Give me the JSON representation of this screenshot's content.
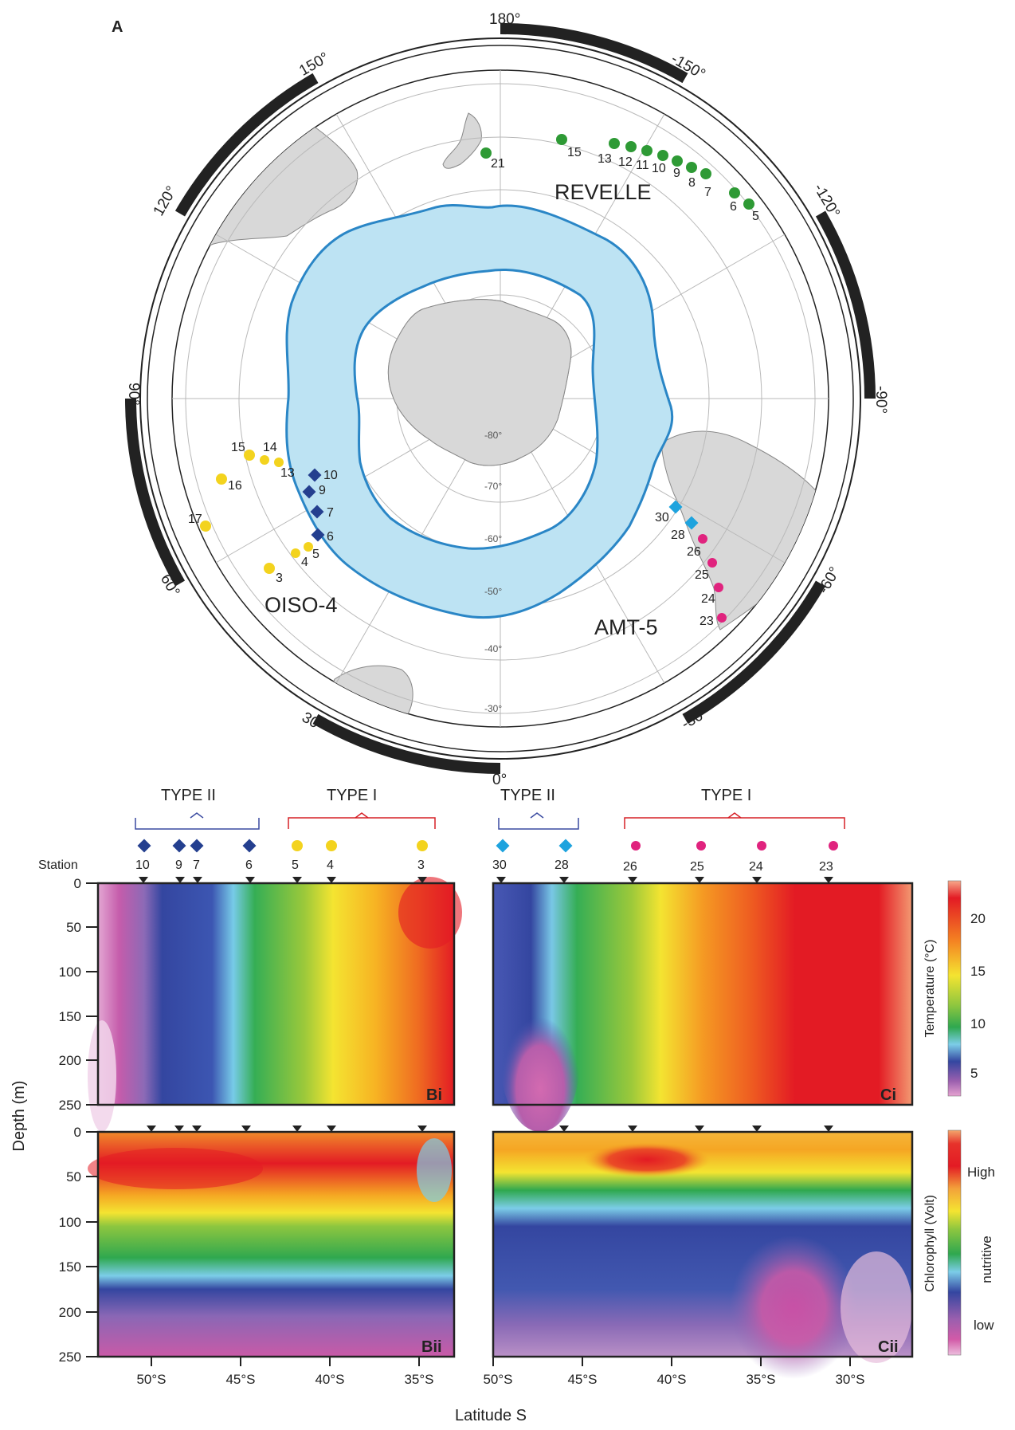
{
  "panel_a": {
    "label": "A",
    "cruise_labels": {
      "revelle": "REVELLE",
      "oiso": "OISO-4",
      "amt": "AMT-5"
    },
    "longitude_labels": [
      "180°",
      "-150°",
      "-120°",
      "-90°",
      "-60°",
      "-30°",
      "0°",
      "30°",
      "60°",
      "90°",
      "120°",
      "150°"
    ],
    "latitude_labels": [
      "-30°",
      "-40°",
      "-50°",
      "-60°",
      "-70°",
      "-80°"
    ],
    "revelle_stations": [
      "21",
      "15",
      "13",
      "12",
      "11",
      "10",
      "9",
      "8",
      "7",
      "6",
      "5"
    ],
    "oiso_type1_stations": [
      "15",
      "14",
      "13",
      "16",
      "17",
      "5",
      "4",
      "3"
    ],
    "oiso_type2_stations": [
      "10",
      "9",
      "7",
      "6"
    ],
    "amt_type2_stations": [
      "30",
      "28"
    ],
    "amt_type1_stations": [
      "26",
      "25",
      "24",
      "23"
    ],
    "colors": {
      "revelle": "#2e9a35",
      "oiso_type1": "#f3d31e",
      "oiso_type2": "#243f8f",
      "amt_type2": "#1ea3de",
      "amt_type1": "#e0237e",
      "polar_front_zone": "#bde3f3",
      "front_line": "#2a86c6",
      "land": "#d8d8d8"
    }
  },
  "panel_b": {
    "type2_label": "TYPE II",
    "type1_label": "TYPE I",
    "station_title": "Station",
    "stations": [
      "10",
      "9",
      "7",
      "6",
      "5",
      "4",
      "3"
    ],
    "top_label": "Bi",
    "bottom_label": "Bii",
    "x_ticks": [
      "50°S",
      "45°S",
      "40°S",
      "35°S"
    ]
  },
  "panel_c": {
    "type2_label": "TYPE II",
    "type1_label": "TYPE I",
    "stations": [
      "30",
      "28",
      "26",
      "25",
      "24",
      "23"
    ],
    "top_label": "Ci",
    "bottom_label": "Cii",
    "x_ticks": [
      "50°S",
      "45°S",
      "40°S",
      "35°S",
      "30°S"
    ]
  },
  "axes": {
    "depth_title": "Depth (m)",
    "depth_ticks": [
      "0",
      "50",
      "100",
      "150",
      "200",
      "250"
    ],
    "latitude_title": "Latitude S"
  },
  "temperature_bar": {
    "title": "Temperature (°C)",
    "ticks": [
      "20",
      "15",
      "10",
      "5"
    ]
  },
  "chlorophyll_bar": {
    "title": "Chlorophyll (Volt)",
    "labels": [
      "High",
      "nutritive",
      "low"
    ]
  },
  "chart_data": {
    "type": "heatmap",
    "panels": [
      {
        "name": "Bi",
        "variable": "Temperature (°C)",
        "x_range": [
          53,
          33
        ],
        "y_range": [
          0,
          250
        ],
        "station_latitudes": [
          50.3,
          48.5,
          47.6,
          44.6,
          42.3,
          40.2,
          35.0
        ]
      },
      {
        "name": "Bii",
        "variable": "Chlorophyll (Volt)",
        "x_range": [
          53,
          33
        ],
        "y_range": [
          0,
          250
        ]
      },
      {
        "name": "Ci",
        "variable": "Temperature (°C)",
        "x_range": [
          50,
          27
        ],
        "y_range": [
          0,
          250
        ],
        "station_latitudes": [
          50.0,
          46.3,
          42.2,
          38.5,
          35.3,
          31.3
        ]
      },
      {
        "name": "Cii",
        "variable": "Chlorophyll (Volt)",
        "x_range": [
          50,
          27
        ],
        "y_range": [
          0,
          250
        ]
      }
    ],
    "temperature_scale": [
      3,
      24
    ]
  }
}
